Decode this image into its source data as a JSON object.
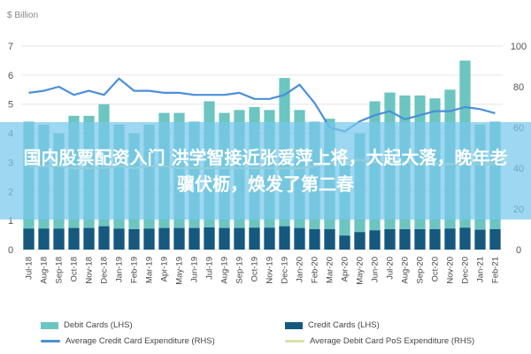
{
  "chart_data": {
    "type": "bar",
    "unit_label": "$ Billion",
    "categories": [
      "Jul-18",
      "Aug-18",
      "Sep-18",
      "Oct-18",
      "Nov-18",
      "Dec-18",
      "Jan-19",
      "Feb-19",
      "Mar-19",
      "Apr-19",
      "May-19",
      "Jun-19",
      "Jul-19",
      "Aug-19",
      "Sep-19",
      "Oct-19",
      "Nov-19",
      "Dec-19",
      "Jan-20",
      "Feb-20",
      "Mar-20",
      "Apr-20",
      "May-20",
      "Jun-20",
      "Jul-20",
      "Aug-20",
      "Sep-20",
      "Oct-20",
      "Nov-20",
      "Dec-20",
      "Jan-21",
      "Feb-21"
    ],
    "left_axis": {
      "ticks": [
        "0",
        "1",
        "2",
        "3",
        "4",
        "5",
        "6",
        "7"
      ],
      "ylim": [
        0,
        7
      ]
    },
    "right_axis": {
      "ticks": [
        "0",
        "20",
        "40",
        "60",
        "80",
        "100"
      ],
      "ylim": [
        0,
        100
      ]
    },
    "series": [
      {
        "name": "Debit Cards (LHS)",
        "kind": "bar",
        "axis": "left",
        "color": "#6cc5c0",
        "values": [
          4.4,
          4.3,
          4.0,
          4.6,
          4.6,
          5.0,
          4.3,
          4.0,
          4.3,
          4.7,
          4.7,
          4.4,
          5.1,
          4.7,
          4.8,
          4.9,
          4.8,
          5.9,
          4.8,
          4.4,
          4.5,
          2.9,
          4.0,
          5.1,
          5.4,
          5.3,
          5.3,
          5.2,
          5.5,
          6.5,
          4.3,
          4.4
        ]
      },
      {
        "name": "Credit Cards (LHS)",
        "kind": "bar",
        "axis": "left",
        "color": "#17587f",
        "values": [
          0.72,
          0.72,
          0.72,
          0.74,
          0.74,
          0.8,
          0.72,
          0.7,
          0.72,
          0.74,
          0.74,
          0.74,
          0.76,
          0.74,
          0.74,
          0.75,
          0.75,
          0.8,
          0.74,
          0.7,
          0.7,
          0.48,
          0.6,
          0.66,
          0.7,
          0.7,
          0.7,
          0.7,
          0.72,
          0.75,
          0.68,
          0.7
        ]
      },
      {
        "name": "Average Credit Card Expenditure (RHS)",
        "kind": "line",
        "axis": "right",
        "color": "#4a90d9",
        "values": [
          77,
          78,
          80,
          76,
          78,
          76,
          84,
          78,
          78,
          77,
          77,
          76,
          76,
          76,
          77,
          74,
          74,
          76,
          81,
          72,
          60,
          58,
          63,
          66,
          68,
          64,
          66,
          68,
          68,
          70,
          69,
          67
        ]
      },
      {
        "name": "Average Debit Card PoS Expenditure (RHS)",
        "kind": "line",
        "axis": "right",
        "color": "#d6e2a8",
        "values": [
          41,
          41,
          41,
          40,
          40,
          40,
          41,
          40,
          41,
          41,
          40,
          40,
          40,
          40,
          40,
          40,
          40,
          40,
          40,
          41,
          42,
          44,
          44,
          43,
          43,
          43,
          42,
          42,
          42,
          42,
          42,
          42
        ]
      }
    ]
  },
  "banner": {
    "text": "国内股票配资入门 洪学智接近张爱萍上将，大起大落，晚年老骥伏枥，焕发了第二春"
  }
}
